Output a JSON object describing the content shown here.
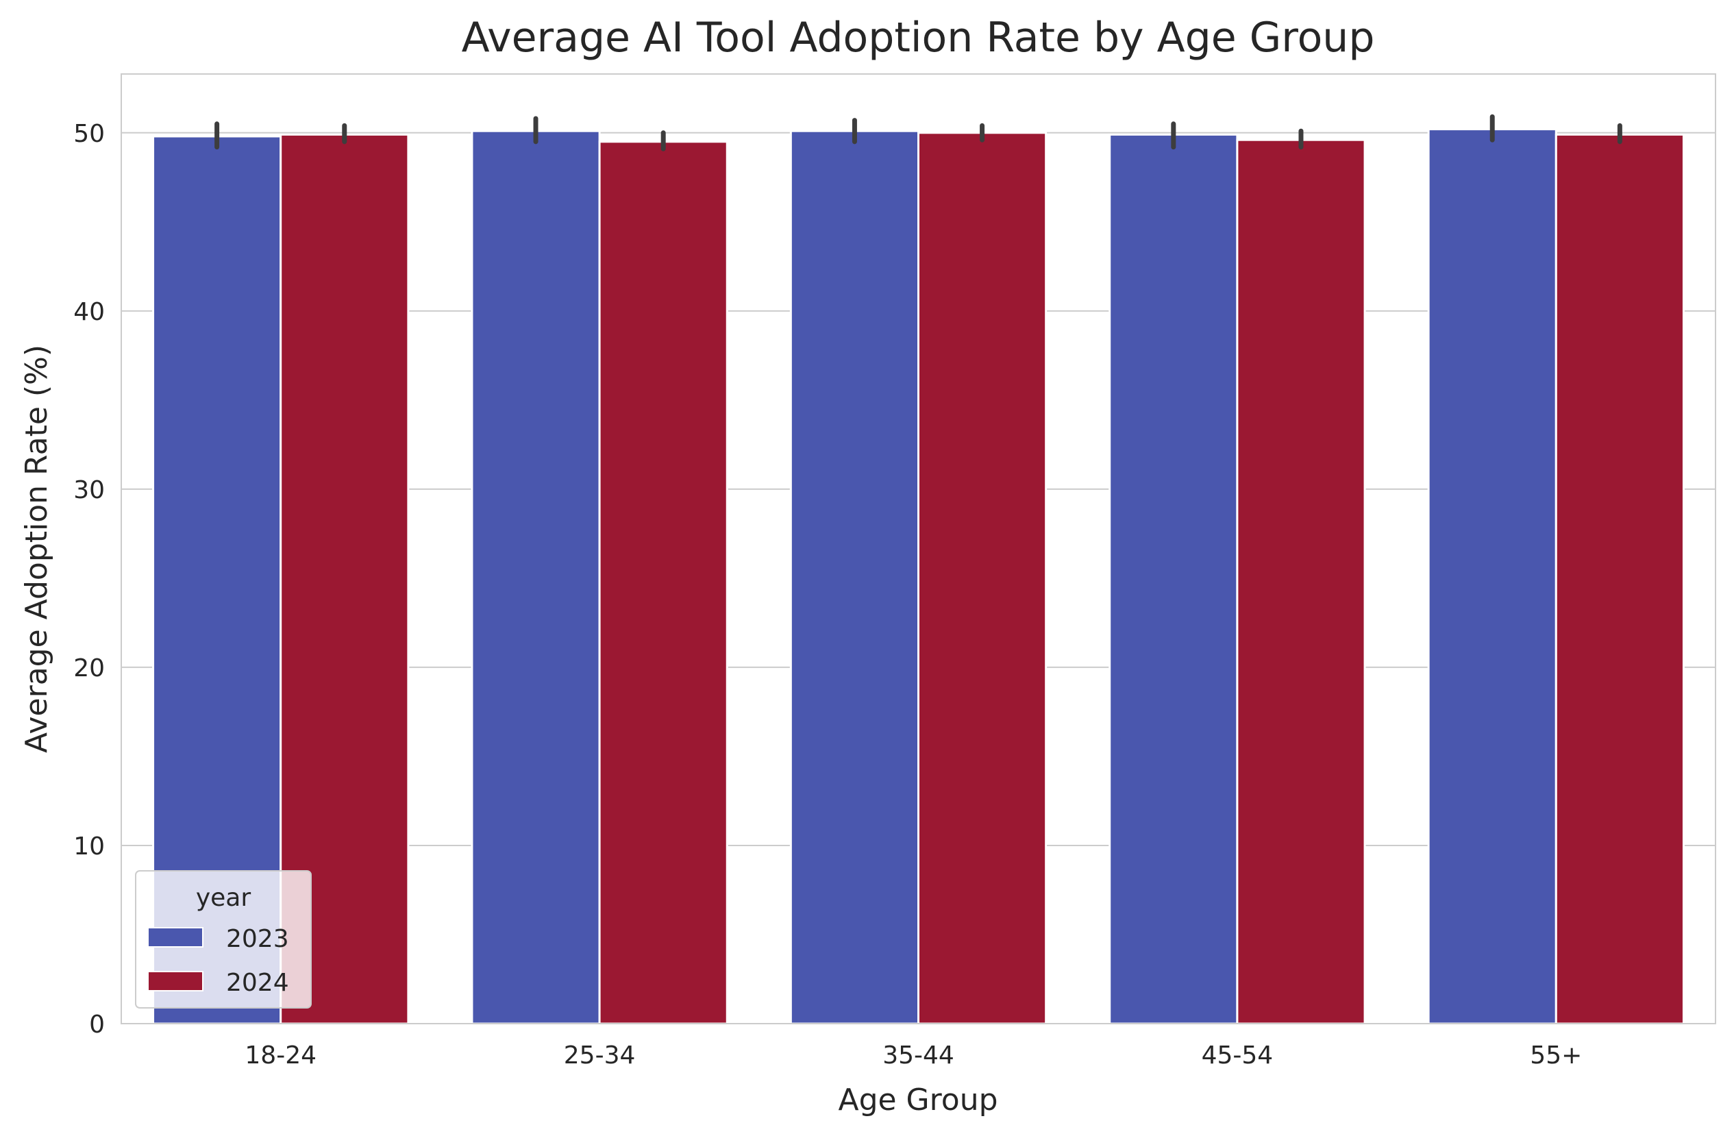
{
  "chart_data": {
    "type": "bar",
    "title": "Average AI Tool Adoption Rate by Age Group",
    "xlabel": "Age Group",
    "ylabel": "Average Adoption Rate (%)",
    "categories": [
      "18-24",
      "25-34",
      "35-44",
      "45-54",
      "55+"
    ],
    "series": [
      {
        "name": "2023",
        "color": "#4a57ae",
        "values": [
          49.8,
          50.1,
          50.1,
          49.9,
          50.2
        ],
        "error_low": [
          49.2,
          49.5,
          49.5,
          49.2,
          49.6
        ],
        "error_high": [
          50.5,
          50.8,
          50.7,
          50.5,
          50.9
        ]
      },
      {
        "name": "2024",
        "color": "#9b1832",
        "values": [
          49.9,
          49.5,
          50.0,
          49.6,
          49.9
        ],
        "error_low": [
          49.5,
          49.1,
          49.6,
          49.2,
          49.5
        ],
        "error_high": [
          50.4,
          50.0,
          50.4,
          50.1,
          50.4
        ]
      }
    ],
    "yticks": [
      0,
      10,
      20,
      30,
      40,
      50
    ],
    "ylim": [
      0,
      53.3
    ],
    "grid": "horizontal",
    "legend": {
      "title": "year",
      "position": "lower-left"
    }
  }
}
